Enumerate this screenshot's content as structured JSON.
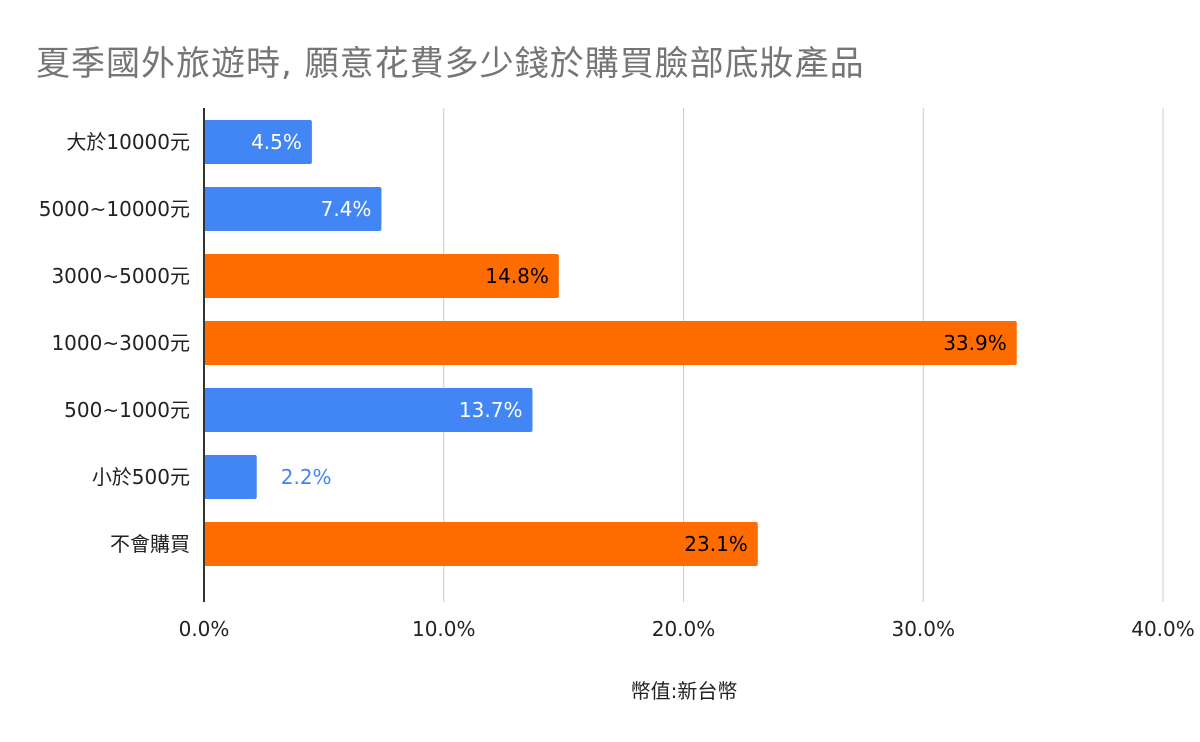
{
  "chart_data": {
    "type": "bar",
    "orientation": "horizontal",
    "title": "夏季國外旅遊時, 願意花費多少錢於購買臉部底妝產品",
    "xlabel": "幣值:新台幣",
    "ylabel": "",
    "xlim": [
      0,
      40
    ],
    "x_ticks": [
      "0.0%",
      "10.0%",
      "20.0%",
      "30.0%",
      "40.0%"
    ],
    "grid": true,
    "categories": [
      "大於10000元",
      "5000~10000元",
      "3000~5000元",
      "1000~3000元",
      "500~1000元",
      "小於500元",
      "不會購買"
    ],
    "values": [
      4.5,
      7.4,
      14.8,
      33.9,
      13.7,
      2.2,
      23.1
    ],
    "value_labels": [
      "4.5%",
      "7.4%",
      "14.8%",
      "33.9%",
      "13.7%",
      "2.2%",
      "23.1%"
    ],
    "bar_colors": [
      "#4285f4",
      "#4285f4",
      "#ff6d01",
      "#ff6d01",
      "#4285f4",
      "#4285f4",
      "#ff6d01"
    ],
    "colors": {
      "blue": "#4285f4",
      "orange": "#ff6d01",
      "grid": "#cccccc",
      "axis": "#333333",
      "title": "#757575"
    }
  }
}
